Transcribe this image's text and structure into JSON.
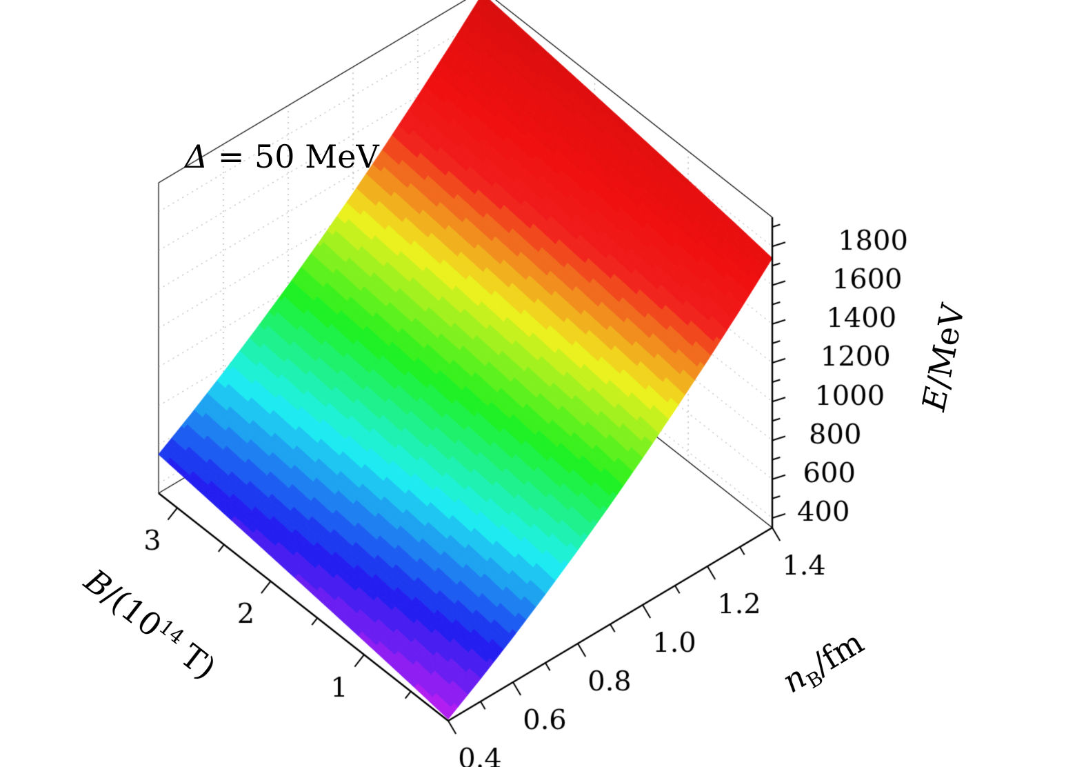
{
  "figure": {
    "background": "#ffffff",
    "annotation": {
      "symbol": "Δ",
      "text": " = 50 MeV"
    }
  },
  "chart_data": {
    "type": "surface3d",
    "annotation": "Δ = 50 MeV",
    "x_axis": {
      "label": "n_B/fm",
      "label_parts": {
        "sym": "n",
        "sub": "B",
        "post": "/fm"
      },
      "range": [
        0.4,
        1.4
      ],
      "tick_values": [
        0.4,
        0.6,
        0.8,
        1.0,
        1.2,
        1.4
      ],
      "tick_labels": [
        "0.4",
        "0.6",
        "0.8",
        "1.0",
        "1.2",
        "1.4"
      ],
      "minor_ticks": [
        0.5,
        0.7,
        0.9,
        1.1,
        1.3
      ]
    },
    "y_axis": {
      "label": "B/(10^14 T)",
      "label_parts": {
        "sym": "B",
        "mid": "/(10",
        "sup": "14",
        "post": " T)"
      },
      "range": [
        0.1,
        3.2
      ],
      "tick_values": [
        1,
        2,
        3
      ],
      "tick_labels": [
        "1",
        "2",
        "3"
      ],
      "minor_ticks": [
        0.5,
        1.5,
        2.5
      ]
    },
    "z_axis": {
      "label": "E/MeV",
      "label_parts": {
        "sym": "E",
        "post": "/MeV"
      },
      "range": [
        350,
        1950
      ],
      "tick_values": [
        400,
        600,
        800,
        1000,
        1200,
        1400,
        1600,
        1800
      ],
      "tick_labels": [
        "400",
        "600",
        "800",
        "1000",
        "1200",
        "1400",
        "1600",
        "1800"
      ],
      "minor_ticks": [
        500,
        700,
        900,
        1100,
        1300,
        1500,
        1700,
        1900
      ]
    },
    "surface": {
      "n_values": [
        0.4,
        0.5,
        0.6,
        0.7,
        0.8,
        0.9,
        1.0,
        1.1,
        1.2,
        1.3,
        1.4
      ],
      "B_values": [
        0.1,
        0.5,
        0.9,
        1.3,
        1.7,
        2.1,
        2.5,
        2.9,
        3.2
      ],
      "E_grid": [
        [
          359,
          467,
          582,
          704,
          832,
          967,
          1108,
          1256,
          1410,
          1571,
          1739
        ],
        [
          388,
          496,
          611,
          733,
          861,
          996,
          1137,
          1285,
          1439,
          1600,
          1768
        ],
        [
          414,
          522,
          637,
          759,
          887,
          1022,
          1163,
          1311,
          1465,
          1626,
          1794
        ],
        [
          439,
          547,
          662,
          784,
          912,
          1047,
          1188,
          1336,
          1490,
          1651,
          1819
        ],
        [
          463,
          571,
          686,
          808,
          936,
          1071,
          1212,
          1360,
          1514,
          1675,
          1843
        ],
        [
          487,
          595,
          710,
          832,
          960,
          1095,
          1236,
          1384,
          1538,
          1699,
          1867
        ],
        [
          510,
          618,
          733,
          855,
          983,
          1118,
          1259,
          1407,
          1561,
          1722,
          1890
        ],
        [
          533,
          641,
          756,
          878,
          1006,
          1141,
          1282,
          1430,
          1584,
          1745,
          1913
        ],
        [
          550,
          658,
          773,
          895,
          1023,
          1158,
          1299,
          1447,
          1601,
          1762,
          1930
        ]
      ]
    },
    "colormap": {
      "name": "rainbow",
      "hue_start": 282,
      "hue_span": 400,
      "band_step": 0.025,
      "saturation": 88,
      "lightness": 53
    },
    "grid_color": "#9a9a9a",
    "axis_color": "#000000",
    "text_color": "#000000"
  }
}
